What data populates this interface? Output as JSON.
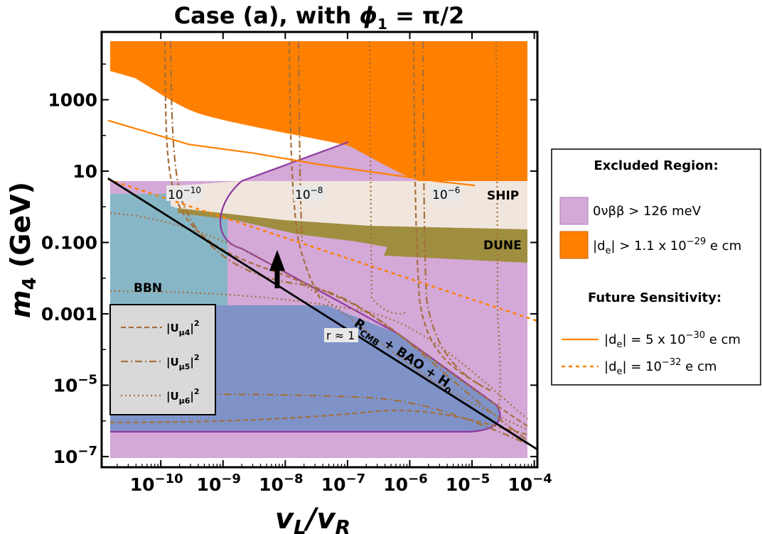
{
  "chart_data": {
    "type": "area",
    "title": "Case (a), with ϕ₁ = π/2",
    "title_text": "Case (a), with ",
    "title_phi": "ϕ",
    "title_sub": "1",
    "title_rest": " = π/2",
    "xlabel_main": "v",
    "xlabel_sub_l": "L",
    "xlabel_slash": "/v",
    "xlabel_sub_r": "R",
    "ylabel_main": "m",
    "ylabel_sub": "4",
    "ylabel_unit": " (GeV)",
    "x_log_range": [
      -10.95,
      -3.95
    ],
    "y_log_range": [
      -7.3,
      4.9
    ],
    "x_scale": "log",
    "y_scale": "log",
    "x_ticks": [
      {
        "exp": -10,
        "base": "10",
        "sup": "−10"
      },
      {
        "exp": -9,
        "base": "10",
        "sup": "−9"
      },
      {
        "exp": -8,
        "base": "10",
        "sup": "−8"
      },
      {
        "exp": -7,
        "base": "10",
        "sup": "−7"
      },
      {
        "exp": -6,
        "base": "10",
        "sup": "−6"
      },
      {
        "exp": -5,
        "base": "10",
        "sup": "−5"
      },
      {
        "exp": -4,
        "base": "10",
        "sup": "−4"
      }
    ],
    "y_ticks": [
      {
        "exp": 3,
        "label": "1000"
      },
      {
        "exp": 1,
        "label": "10"
      },
      {
        "exp": -1,
        "label": "0.100"
      },
      {
        "exp": -3,
        "label": "0.001"
      },
      {
        "exp": -5,
        "base": "10",
        "sup": "−5"
      },
      {
        "exp": -7,
        "base": "10",
        "sup": "−7"
      }
    ],
    "regions": [
      {
        "name": "BBN",
        "label": "BBN",
        "color": "#87b6c6",
        "x": [
          -10.85,
          -9.25
        ],
        "y": [
          -3,
          0.75
        ]
      },
      {
        "name": "SHIP",
        "label": "SHIP",
        "color": "#f1e6dd"
      },
      {
        "name": "DUNE",
        "label": "DUNE",
        "color": "#9f8e3f"
      },
      {
        "name": "0vbb",
        "color": "#d4a8d7",
        "edge": "#8f3aa0"
      },
      {
        "name": "de",
        "color": "#ff8000"
      }
    ],
    "region_labels": {
      "bbn": "BBN",
      "ship": "SHIP",
      "dune": "DUNE"
    },
    "guide_lines": [
      {
        "name": "r ~ 1",
        "label": "r ≈ 1",
        "points": [
          [
            -10.85,
            0.8
          ],
          [
            -3.95,
            -6.8
          ]
        ],
        "color": "#000000"
      },
      {
        "name": "de = 5e-30",
        "points": [
          [
            -10.85,
            2.42
          ],
          [
            -9.55,
            1.75
          ],
          [
            -8.5,
            1.5
          ],
          [
            -7.5,
            1.2
          ],
          [
            -6.5,
            0.95
          ],
          [
            -5.5,
            0.7
          ],
          [
            -4.95,
            0.6
          ]
        ],
        "color": "#ff8000",
        "style": "solid"
      },
      {
        "name": "de = 1e-32",
        "points": [
          [
            -10.85,
            0.77
          ],
          [
            -3.95,
            -3.2
          ]
        ],
        "color": "#ff8000",
        "style": "dashed"
      }
    ],
    "contour_labels": [
      {
        "base": "10",
        "sup": "−10",
        "x": -9.7,
        "y": 0.75
      },
      {
        "base": "10",
        "sup": "−8",
        "x": -7.5,
        "y": 0.75
      },
      {
        "base": "10",
        "sup": "−6",
        "x": -5.25,
        "y": 0.75
      }
    ],
    "band_label": {
      "main": "R",
      "sub": "CMB",
      "rest": " + BAO + H",
      "sub2": "0"
    },
    "r_label": "r ≈ 1",
    "legend_inset": [
      {
        "name": "|Uμ4|²",
        "text": "|U",
        "sub": "μ4",
        "sup": "2",
        "style": "dashed"
      },
      {
        "name": "|Uμ5|²",
        "text": "|U",
        "sub": "μ5",
        "sup": "2",
        "style": "dashdot"
      },
      {
        "name": "|Uμ6|²",
        "text": "|U",
        "sub": "μ6",
        "sup": "2",
        "style": "dotted"
      }
    ],
    "legend_outside": {
      "excluded_title": "Excluded Region:",
      "zvbb_label": "0νββ > 126 meV",
      "de_label_a": "|d",
      "de_label_sub": "e",
      "de_label_b": "| > 1.1 x 10",
      "de_label_sup": "−29",
      "de_label_c": " e cm",
      "future_title": "Future Sensitivity:",
      "f1_a": "|d",
      "f1_sub": "e",
      "f1_b": "| = 5 x 10",
      "f1_sup": "−30",
      "f1_c": " e cm",
      "f2_a": "|d",
      "f2_sub": "e",
      "f2_b": "| = 10",
      "f2_sup": "−32",
      "f2_c": " e cm"
    },
    "colors": {
      "orange": "#ff8000",
      "lilac": "#d4a8d7",
      "purple_edge": "#8f3aa0",
      "teal": "#87b6c6",
      "navy": "#7f93c8",
      "ship": "#f1e6dd",
      "dune": "#9f8e3f",
      "brown": "#a46f3c"
    }
  }
}
